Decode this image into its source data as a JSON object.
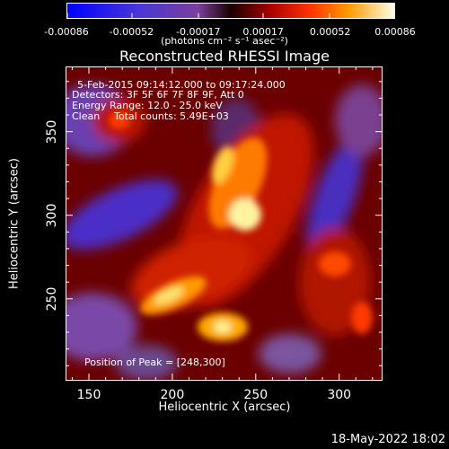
{
  "colorbar": {
    "ticks": [
      "-0.00086",
      "-0.00052",
      "-0.00017",
      "0.00017",
      "0.00052",
      "0.00086"
    ],
    "tick_values": [
      -0.00086,
      -0.00052,
      -0.00017,
      0.00017,
      0.00052,
      0.00086
    ],
    "unit_label": "(photons cm⁻² s⁻¹ asec⁻²)"
  },
  "chart_data": {
    "type": "heatmap",
    "title": "Reconstructed RHESSI Image",
    "xlabel": "Heliocentric X (arcsec)",
    "ylabel": "Heliocentric Y (arcsec)",
    "xlim": [
      136,
      326
    ],
    "ylim": [
      201,
      389
    ],
    "xticks": [
      150,
      200,
      250,
      300
    ],
    "yticks": [
      250,
      300,
      350
    ],
    "annotations": {
      "time": "5-Feb-2015 09:14:12.000 to 09:17:24.000",
      "detectors": "Detectors: 3F 5F 6F 7F 8F 9F, Att 0",
      "energy": "Energy Range: 12.0 - 25.0 keV",
      "method": "Clean",
      "counts": "Total counts: 5.49E+03",
      "peak": "Position of Peak = [248,300]"
    },
    "peak": [
      248,
      300
    ],
    "value_range": [
      -0.00086,
      0.00086
    ]
  },
  "footer": {
    "date": "18-May-2022 18:02"
  }
}
